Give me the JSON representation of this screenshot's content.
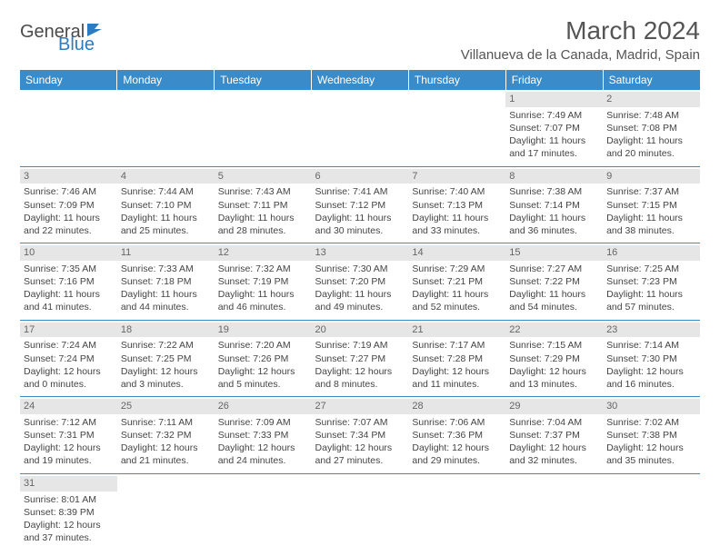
{
  "brand": {
    "part1": "General",
    "part2": "Blue"
  },
  "title": "March 2024",
  "location": "Villanueva de la Canada, Madrid, Spain",
  "weekdays": [
    "Sunday",
    "Monday",
    "Tuesday",
    "Wednesday",
    "Thursday",
    "Friday",
    "Saturday"
  ],
  "colors": {
    "header_bg": "#3a8bc9",
    "header_text": "#ffffff",
    "daynum_bg": "#e6e6e6",
    "rule": "#3a8bc9"
  },
  "weeks": [
    [
      null,
      null,
      null,
      null,
      null,
      {
        "n": "1",
        "sr": "Sunrise: 7:49 AM",
        "ss": "Sunset: 7:07 PM",
        "d1": "Daylight: 11 hours",
        "d2": "and 17 minutes."
      },
      {
        "n": "2",
        "sr": "Sunrise: 7:48 AM",
        "ss": "Sunset: 7:08 PM",
        "d1": "Daylight: 11 hours",
        "d2": "and 20 minutes."
      }
    ],
    [
      {
        "n": "3",
        "sr": "Sunrise: 7:46 AM",
        "ss": "Sunset: 7:09 PM",
        "d1": "Daylight: 11 hours",
        "d2": "and 22 minutes."
      },
      {
        "n": "4",
        "sr": "Sunrise: 7:44 AM",
        "ss": "Sunset: 7:10 PM",
        "d1": "Daylight: 11 hours",
        "d2": "and 25 minutes."
      },
      {
        "n": "5",
        "sr": "Sunrise: 7:43 AM",
        "ss": "Sunset: 7:11 PM",
        "d1": "Daylight: 11 hours",
        "d2": "and 28 minutes."
      },
      {
        "n": "6",
        "sr": "Sunrise: 7:41 AM",
        "ss": "Sunset: 7:12 PM",
        "d1": "Daylight: 11 hours",
        "d2": "and 30 minutes."
      },
      {
        "n": "7",
        "sr": "Sunrise: 7:40 AM",
        "ss": "Sunset: 7:13 PM",
        "d1": "Daylight: 11 hours",
        "d2": "and 33 minutes."
      },
      {
        "n": "8",
        "sr": "Sunrise: 7:38 AM",
        "ss": "Sunset: 7:14 PM",
        "d1": "Daylight: 11 hours",
        "d2": "and 36 minutes."
      },
      {
        "n": "9",
        "sr": "Sunrise: 7:37 AM",
        "ss": "Sunset: 7:15 PM",
        "d1": "Daylight: 11 hours",
        "d2": "and 38 minutes."
      }
    ],
    [
      {
        "n": "10",
        "sr": "Sunrise: 7:35 AM",
        "ss": "Sunset: 7:16 PM",
        "d1": "Daylight: 11 hours",
        "d2": "and 41 minutes."
      },
      {
        "n": "11",
        "sr": "Sunrise: 7:33 AM",
        "ss": "Sunset: 7:18 PM",
        "d1": "Daylight: 11 hours",
        "d2": "and 44 minutes."
      },
      {
        "n": "12",
        "sr": "Sunrise: 7:32 AM",
        "ss": "Sunset: 7:19 PM",
        "d1": "Daylight: 11 hours",
        "d2": "and 46 minutes."
      },
      {
        "n": "13",
        "sr": "Sunrise: 7:30 AM",
        "ss": "Sunset: 7:20 PM",
        "d1": "Daylight: 11 hours",
        "d2": "and 49 minutes."
      },
      {
        "n": "14",
        "sr": "Sunrise: 7:29 AM",
        "ss": "Sunset: 7:21 PM",
        "d1": "Daylight: 11 hours",
        "d2": "and 52 minutes."
      },
      {
        "n": "15",
        "sr": "Sunrise: 7:27 AM",
        "ss": "Sunset: 7:22 PM",
        "d1": "Daylight: 11 hours",
        "d2": "and 54 minutes."
      },
      {
        "n": "16",
        "sr": "Sunrise: 7:25 AM",
        "ss": "Sunset: 7:23 PM",
        "d1": "Daylight: 11 hours",
        "d2": "and 57 minutes."
      }
    ],
    [
      {
        "n": "17",
        "sr": "Sunrise: 7:24 AM",
        "ss": "Sunset: 7:24 PM",
        "d1": "Daylight: 12 hours",
        "d2": "and 0 minutes."
      },
      {
        "n": "18",
        "sr": "Sunrise: 7:22 AM",
        "ss": "Sunset: 7:25 PM",
        "d1": "Daylight: 12 hours",
        "d2": "and 3 minutes."
      },
      {
        "n": "19",
        "sr": "Sunrise: 7:20 AM",
        "ss": "Sunset: 7:26 PM",
        "d1": "Daylight: 12 hours",
        "d2": "and 5 minutes."
      },
      {
        "n": "20",
        "sr": "Sunrise: 7:19 AM",
        "ss": "Sunset: 7:27 PM",
        "d1": "Daylight: 12 hours",
        "d2": "and 8 minutes."
      },
      {
        "n": "21",
        "sr": "Sunrise: 7:17 AM",
        "ss": "Sunset: 7:28 PM",
        "d1": "Daylight: 12 hours",
        "d2": "and 11 minutes."
      },
      {
        "n": "22",
        "sr": "Sunrise: 7:15 AM",
        "ss": "Sunset: 7:29 PM",
        "d1": "Daylight: 12 hours",
        "d2": "and 13 minutes."
      },
      {
        "n": "23",
        "sr": "Sunrise: 7:14 AM",
        "ss": "Sunset: 7:30 PM",
        "d1": "Daylight: 12 hours",
        "d2": "and 16 minutes."
      }
    ],
    [
      {
        "n": "24",
        "sr": "Sunrise: 7:12 AM",
        "ss": "Sunset: 7:31 PM",
        "d1": "Daylight: 12 hours",
        "d2": "and 19 minutes."
      },
      {
        "n": "25",
        "sr": "Sunrise: 7:11 AM",
        "ss": "Sunset: 7:32 PM",
        "d1": "Daylight: 12 hours",
        "d2": "and 21 minutes."
      },
      {
        "n": "26",
        "sr": "Sunrise: 7:09 AM",
        "ss": "Sunset: 7:33 PM",
        "d1": "Daylight: 12 hours",
        "d2": "and 24 minutes."
      },
      {
        "n": "27",
        "sr": "Sunrise: 7:07 AM",
        "ss": "Sunset: 7:34 PM",
        "d1": "Daylight: 12 hours",
        "d2": "and 27 minutes."
      },
      {
        "n": "28",
        "sr": "Sunrise: 7:06 AM",
        "ss": "Sunset: 7:36 PM",
        "d1": "Daylight: 12 hours",
        "d2": "and 29 minutes."
      },
      {
        "n": "29",
        "sr": "Sunrise: 7:04 AM",
        "ss": "Sunset: 7:37 PM",
        "d1": "Daylight: 12 hours",
        "d2": "and 32 minutes."
      },
      {
        "n": "30",
        "sr": "Sunrise: 7:02 AM",
        "ss": "Sunset: 7:38 PM",
        "d1": "Daylight: 12 hours",
        "d2": "and 35 minutes."
      }
    ],
    [
      {
        "n": "31",
        "sr": "Sunrise: 8:01 AM",
        "ss": "Sunset: 8:39 PM",
        "d1": "Daylight: 12 hours",
        "d2": "and 37 minutes."
      },
      null,
      null,
      null,
      null,
      null,
      null
    ]
  ]
}
